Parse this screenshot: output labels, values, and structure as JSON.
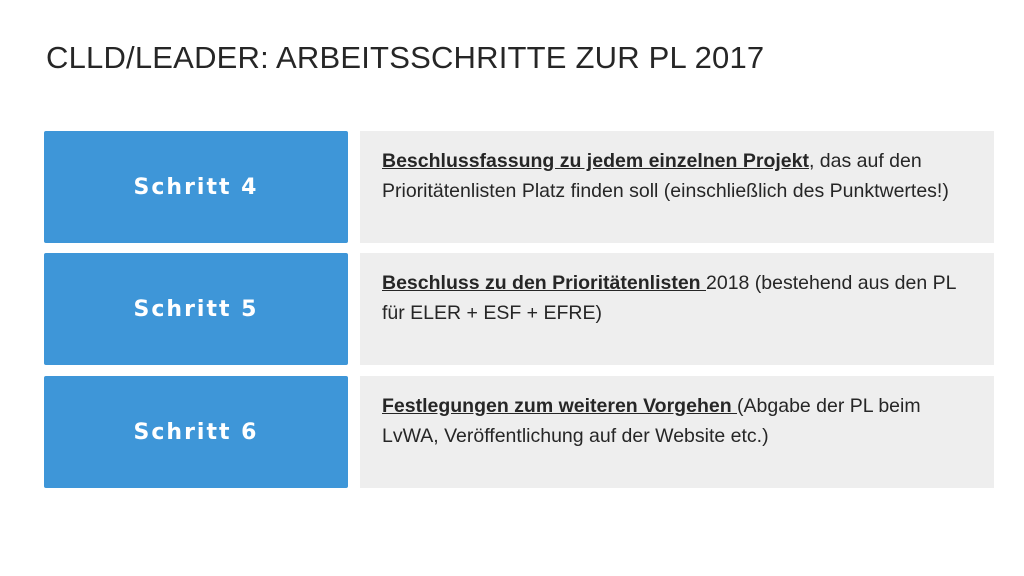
{
  "slide": {
    "title": "CLLD/LEADER: ARBEITSSCHRITTE ZUR PL 2017"
  },
  "steps": [
    {
      "label": "Schritt 4",
      "emphasis": "Beschlussfassung zu jedem einzelnen Projekt",
      "text": ", das auf den Prioritätenlisten Platz finden soll (einschließlich des Punktwertes!)"
    },
    {
      "label": "Schritt 5",
      "emphasis": "Beschluss zu den Prioritätenlisten ",
      "text": "2018 (bestehend aus den PL für ELER + ESF + EFRE)"
    },
    {
      "label": "Schritt 6",
      "emphasis": "Festlegungen zum weiteren Vorgehen ",
      "text": "(Abgabe der PL beim LvWA, Veröffentlichung auf der Website  etc.)"
    }
  ],
  "colors": {
    "step_label_bg": "#3e96d8",
    "step_text_bg": "#eeeeee",
    "title_text": "#262626"
  }
}
